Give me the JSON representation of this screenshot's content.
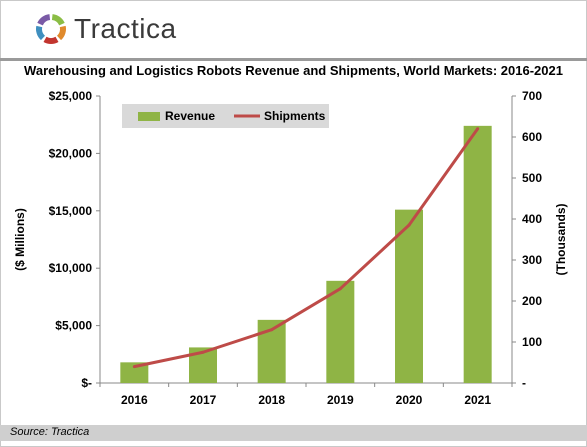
{
  "brand": {
    "name": "Tractica",
    "logo_colors": [
      "#8bbd45",
      "#e08a2c",
      "#c2352f",
      "#3f8fbf",
      "#7a5aa6"
    ]
  },
  "chart_data": {
    "type": "bar",
    "title": "Warehousing and Logistics Robots Revenue and Shipments, World Markets: 2016-2021",
    "categories": [
      "2016",
      "2017",
      "2018",
      "2019",
      "2020",
      "2021"
    ],
    "series": [
      {
        "name": "Revenue",
        "type": "bar",
        "axis": "left",
        "color": "#8fb445",
        "values": [
          1800,
          3100,
          5500,
          8900,
          15100,
          22400
        ]
      },
      {
        "name": "Shipments",
        "type": "line",
        "axis": "right",
        "color": "#be4b48",
        "values": [
          40,
          75,
          130,
          230,
          385,
          620
        ]
      }
    ],
    "y_left": {
      "label": "($ Millions)",
      "range": [
        0,
        25000
      ],
      "ticks": [
        0,
        5000,
        10000,
        15000,
        20000,
        25000
      ],
      "tick_labels": [
        "$-",
        "$5,000",
        "$10,000",
        "$15,000",
        "$20,000",
        "$25,000"
      ]
    },
    "y_right": {
      "label": "(Thousands)",
      "range": [
        0,
        700
      ],
      "ticks": [
        0,
        100,
        200,
        300,
        400,
        500,
        600,
        700
      ],
      "tick_labels": [
        "-",
        "100",
        "200",
        "300",
        "400",
        "500",
        "600",
        "700"
      ]
    },
    "grid": false,
    "legend": {
      "placement": "top-left",
      "background": "#d9d9d9"
    }
  },
  "footer": {
    "source": "Source: Tractica"
  }
}
